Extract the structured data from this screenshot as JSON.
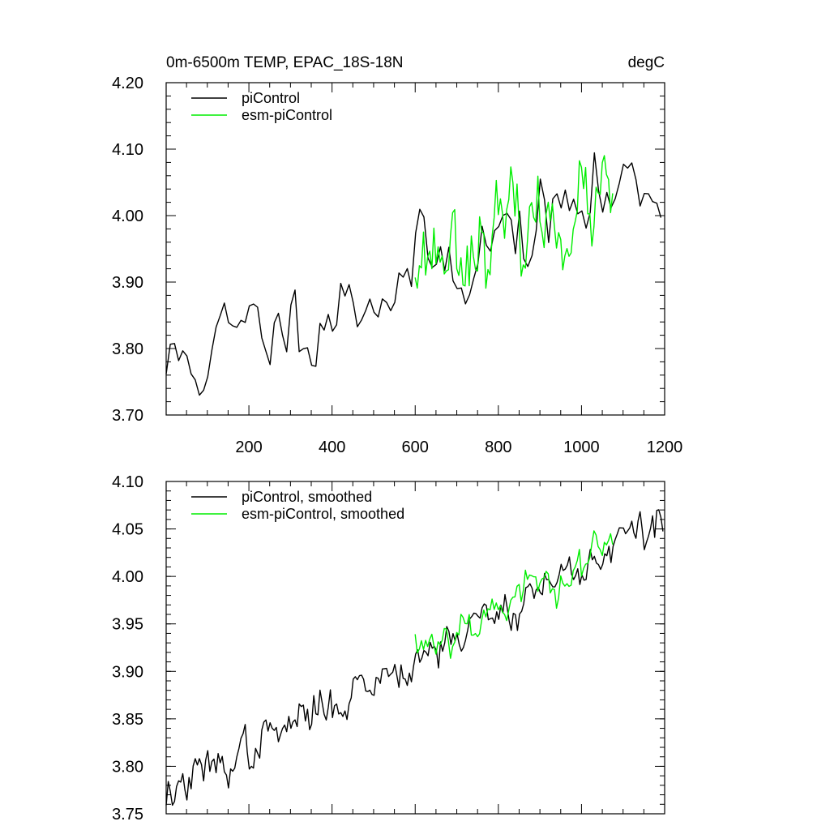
{
  "chart_data": [
    {
      "type": "line",
      "title_left": "0m-6500m TEMP, EPAC_18S-18N",
      "title_right": "degC",
      "xlim": [
        1,
        1200
      ],
      "ylim": [
        3.7,
        4.2
      ],
      "x_ticks": [
        200,
        400,
        600,
        800,
        1000,
        1200
      ],
      "x_tick_labels": [
        "200",
        "400",
        "600",
        "800",
        "1000",
        "1200"
      ],
      "y_ticks": [
        3.7,
        3.8,
        3.9,
        4.0,
        4.1,
        4.2
      ],
      "y_tick_labels": [
        "3.70",
        "3.80",
        "3.90",
        "4.00",
        "4.10",
        "4.20"
      ],
      "legend_position": "top-left",
      "series": [
        {
          "name": "piControl",
          "color": "#000000",
          "x_start": 1,
          "x_step": 10,
          "trend": [
            3.77,
            4.06
          ],
          "noise": 0.03,
          "seed": 11,
          "values_description_free": true
        },
        {
          "name": "esm-piControl",
          "color": "#00ee00",
          "x_start": 600,
          "x_step": 5,
          "trend": [
            3.94,
            4.02
          ],
          "noise": 0.03,
          "seed": 23
        }
      ]
    },
    {
      "type": "line",
      "xlim": [
        1,
        1200
      ],
      "ylim": [
        3.75,
        4.1
      ],
      "x_ticks": [
        200,
        400,
        600,
        800,
        1000,
        1200
      ],
      "y_ticks": [
        3.75,
        3.8,
        3.85,
        3.9,
        3.95,
        4.0,
        4.05,
        4.1
      ],
      "y_tick_labels": [
        "3.75",
        "3.80",
        "3.85",
        "3.90",
        "3.95",
        "4.00",
        "4.05",
        "4.10"
      ],
      "legend_position": "top-left",
      "series": [
        {
          "name": "piControl, smoothed",
          "color": "#000000",
          "x_start": 1,
          "x_step": 5,
          "trend": [
            3.77,
            4.06
          ],
          "noise": 0.01,
          "seed": 37
        },
        {
          "name": "esm-piControl, smoothed",
          "color": "#00ee00",
          "x_start": 600,
          "x_step": 5,
          "trend": [
            3.925,
            4.03
          ],
          "noise": 0.01,
          "seed": 53
        }
      ]
    }
  ]
}
